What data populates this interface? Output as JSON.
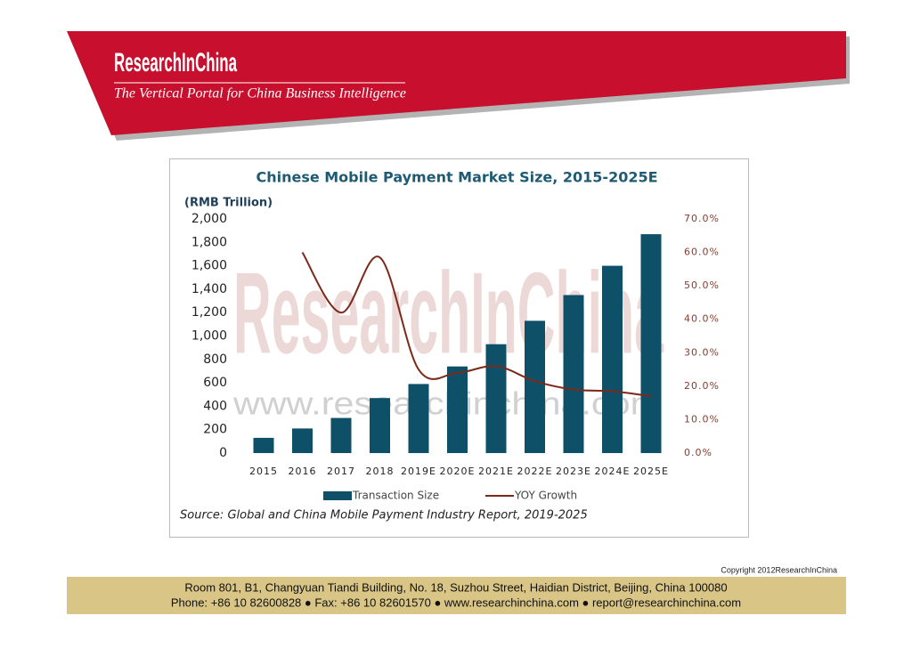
{
  "header": {
    "logo": "ResearchInChina",
    "tagline": "The Vertical Portal for China Business Intelligence"
  },
  "chart_data": {
    "type": "bar",
    "title": "Chinese Mobile Payment Market Size, 2015-2025E",
    "y_label": "(RMB Trillion)",
    "watermark": "ResearchInChina",
    "watermark_url": "www.researchinchina.com",
    "source": "Source: Global and China Mobile Payment Industry Report, 2019-2025",
    "categories": [
      "2015",
      "2016",
      "2017",
      "2018",
      "2019E",
      "2020E",
      "2021E",
      "2022E",
      "2023E",
      "2024E",
      "2025E"
    ],
    "series": [
      {
        "name": "Transaction Size",
        "type": "bar",
        "color": "#0e5068",
        "values": [
          130,
          210,
          300,
          470,
          590,
          740,
          930,
          1130,
          1350,
          1600,
          1870
        ]
      },
      {
        "name": "YOY Growth",
        "type": "line",
        "axis": "y2",
        "color": "#7b2a1a",
        "values": [
          null,
          60,
          42,
          58.5,
          25,
          24,
          26,
          21.5,
          19,
          18.5,
          17
        ]
      }
    ],
    "ylim": [
      0,
      2000
    ],
    "yticks": [
      0,
      200,
      400,
      600,
      800,
      {
        "value": 1000,
        "label": "1,000"
      },
      {
        "value": 1200,
        "label": "1,200"
      },
      {
        "value": 1400,
        "label": "1,400"
      },
      {
        "value": 1600,
        "label": "1,600"
      },
      {
        "value": 1800,
        "label": "1,800"
      },
      {
        "value": 2000,
        "label": "2,000"
      }
    ],
    "y2lim": [
      0,
      70
    ],
    "y2ticks": [
      {
        "value": 0,
        "label": "0.0%"
      },
      {
        "value": 10,
        "label": "10.0%"
      },
      {
        "value": 20,
        "label": "20.0%"
      },
      {
        "value": 30,
        "label": "30.0%"
      },
      {
        "value": 40,
        "label": "40.0%"
      },
      {
        "value": 50,
        "label": "50.0%"
      },
      {
        "value": 60,
        "label": "60.0%"
      },
      {
        "value": 70,
        "label": "70.0%"
      }
    ],
    "grid": false,
    "legend": "bottom"
  },
  "footer": {
    "copyright": "Copyright 2012ResearchInChina",
    "address": "Room 801, B1, Changyuan Tiandi Building, No. 18, Suzhou Street, Haidian District, Beijing, China 100080",
    "contact": "Phone: +86 10 82600828 ● Fax: +86 10 82601570 ● www.researchinchina.com ●  report@researchinchina.com"
  }
}
